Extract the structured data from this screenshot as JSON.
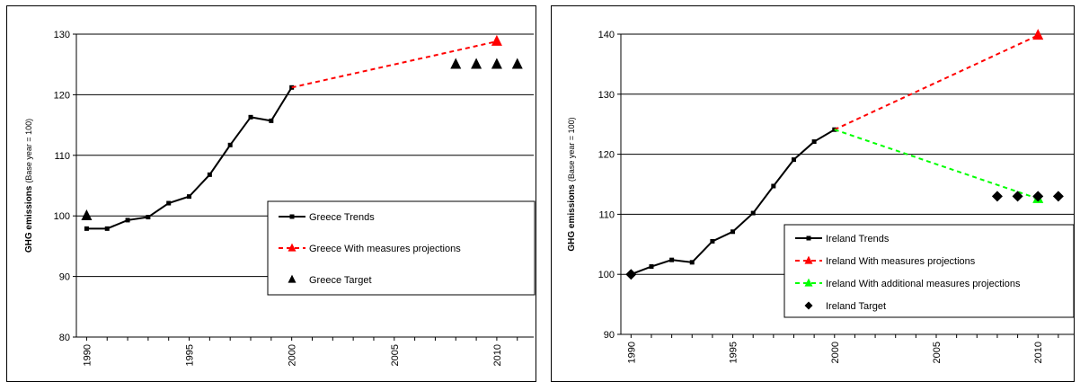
{
  "chart_data": [
    {
      "type": "line",
      "ylabel_main": "GHG emissions",
      "ylabel_sub": "(Base year = 100)",
      "ylim": [
        80,
        130
      ],
      "yticks": [
        80,
        90,
        100,
        110,
        120,
        130
      ],
      "xlim": [
        1989.5,
        2011.8
      ],
      "xticks": [
        1990,
        1995,
        2000,
        2005,
        2010
      ],
      "grid": "horizontal",
      "legend_position": "lower-right",
      "series": [
        {
          "name": "Greece  Trends",
          "style": "solid",
          "marker": "square",
          "color": "#000000",
          "x": [
            1990,
            1991,
            1992,
            1993,
            1994,
            1995,
            1996,
            1997,
            1998,
            1999,
            2000
          ],
          "y": [
            97.9,
            97.9,
            99.3,
            99.8,
            102.1,
            103.2,
            106.8,
            111.7,
            116.3,
            115.7,
            121.2
          ]
        },
        {
          "name": "Greece  With measures projections",
          "style": "dashed",
          "marker": "triangle",
          "color": "#ff0000",
          "x": [
            2000,
            2010
          ],
          "y": [
            121.2,
            128.8
          ]
        },
        {
          "name": "Greece  Target",
          "style": "none",
          "marker": "triangle",
          "color": "#000000",
          "x": [
            1990,
            2008,
            2009,
            2010,
            2011
          ],
          "y": [
            100.0,
            125.0,
            125.0,
            125.0,
            125.0
          ]
        }
      ]
    },
    {
      "type": "line",
      "ylabel_main": "GHG emissions",
      "ylabel_sub": "(Base year = 100)",
      "ylim": [
        90,
        140
      ],
      "yticks": [
        90,
        100,
        110,
        120,
        130,
        140
      ],
      "xlim": [
        1989.5,
        2011.8
      ],
      "xticks": [
        1990,
        1995,
        2000,
        2005,
        2010
      ],
      "grid": "horizontal",
      "legend_position": "lower-right",
      "series": [
        {
          "name": "Ireland  Trends",
          "style": "solid",
          "marker": "square",
          "color": "#000000",
          "x": [
            1990,
            1991,
            1992,
            1993,
            1994,
            1995,
            1996,
            1997,
            1998,
            1999,
            2000
          ],
          "y": [
            100.0,
            101.3,
            102.4,
            102.0,
            105.5,
            107.1,
            110.2,
            114.7,
            119.1,
            122.1,
            124.1
          ]
        },
        {
          "name": "Ireland  With measures projections",
          "style": "dashed",
          "marker": "triangle",
          "color": "#ff0000",
          "x": [
            2000,
            2010
          ],
          "y": [
            124.1,
            139.8
          ]
        },
        {
          "name": "Ireland  With additional measures projections",
          "style": "dashed",
          "marker": "triangle",
          "color": "#00ff00",
          "x": [
            2000,
            2010
          ],
          "y": [
            124.1,
            112.6
          ]
        },
        {
          "name": "Ireland  Target",
          "style": "none",
          "marker": "diamond",
          "color": "#000000",
          "x": [
            1990,
            2008,
            2009,
            2010,
            2011
          ],
          "y": [
            100.0,
            113.0,
            113.0,
            113.0,
            113.0
          ]
        }
      ]
    }
  ]
}
